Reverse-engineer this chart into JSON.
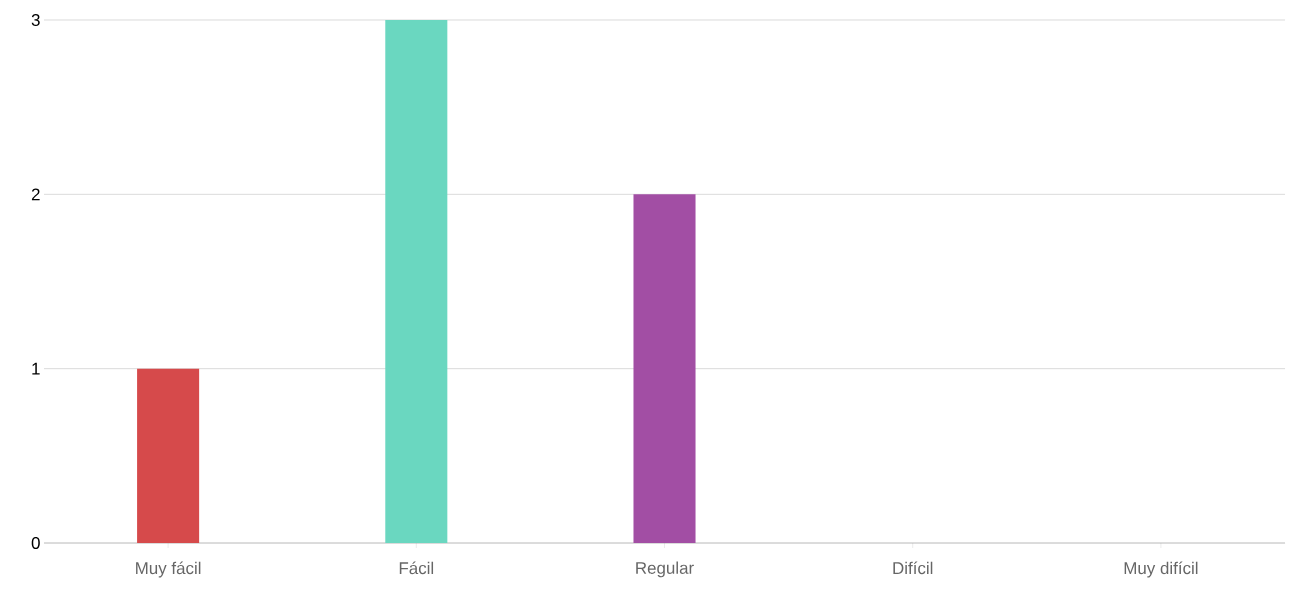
{
  "chart_data": {
    "type": "bar",
    "categories": [
      "Muy fácil",
      "Fácil",
      "Regular",
      "Difícil",
      "Muy difícil"
    ],
    "values": [
      1,
      3,
      2,
      0,
      0
    ],
    "colors": [
      "#d64a4b",
      "#6ad7c0",
      "#a24ea4",
      "#f5b041",
      "#5dade2"
    ],
    "ylim": [
      0,
      3
    ],
    "yticks": [
      0,
      1,
      2,
      3
    ],
    "grid": "y"
  }
}
